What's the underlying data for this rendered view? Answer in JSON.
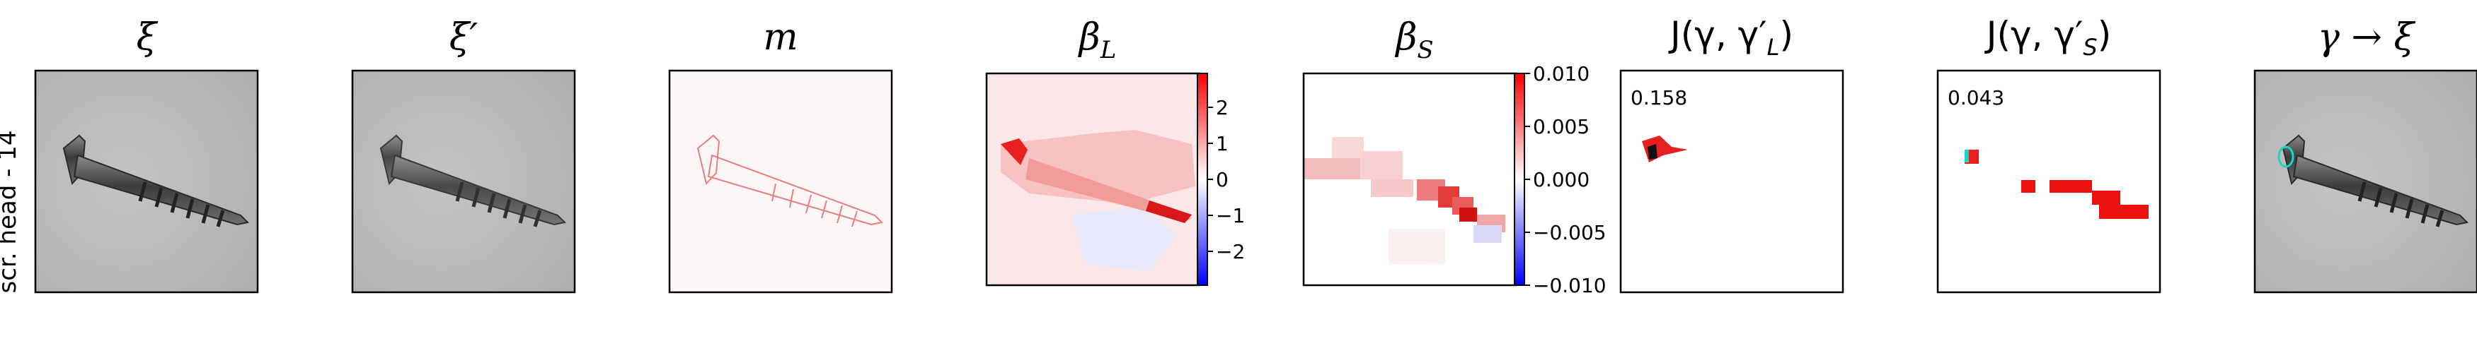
{
  "row_label": "scr. head - 14",
  "panels": {
    "xi": {
      "title": "ξ"
    },
    "xi_prime": {
      "title": "ξ′"
    },
    "m": {
      "title": "m"
    },
    "beta_L": {
      "title": "β",
      "title_sub": "L",
      "colorbar_ticks": [
        "2",
        "1",
        "0",
        "−1",
        "−2"
      ]
    },
    "beta_S": {
      "title": "β",
      "title_sub": "S",
      "colorbar_ticks": [
        "0.010",
        "0.005",
        "0.000",
        "−0.005",
        "−0.010"
      ]
    },
    "J_L": {
      "title": "J(γ, γ′",
      "title_sub": "L",
      "title_end": ")",
      "score": "0.158"
    },
    "J_S": {
      "title": "J(γ, γ′",
      "title_sub": "S",
      "title_end": ")",
      "score": "0.043"
    },
    "gamma_xi": {
      "title": "γ → ξ"
    }
  },
  "colors": {
    "positive": "#e8201c",
    "negative": "#1a1aff",
    "neutral": "#ffffff",
    "screw_metal": "#5a5a5a",
    "background_gray": "#b9b9b9",
    "contour_cyan": "#19d7c8"
  }
}
